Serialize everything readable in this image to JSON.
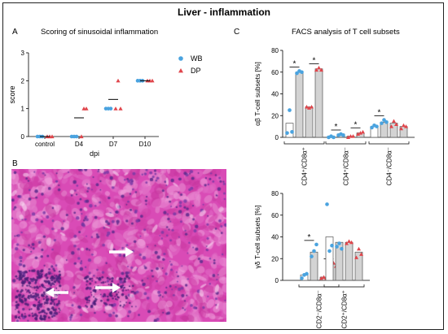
{
  "figure": {
    "title": "Liver - inflammation",
    "panels": {
      "a": "A",
      "b": "B",
      "c": "C"
    },
    "panel_a_title": "Scoring of sinusoidal inflammation",
    "panel_c_title": "FACS analysis of T cell subsets"
  },
  "colors": {
    "wb": "#4aa3df",
    "dp": "#e0454b",
    "bar_fill": "#d3d3d3",
    "bar_edge": "#555555",
    "histo_bg": "#d94bb6"
  },
  "chart_data": [
    {
      "id": "scoring",
      "type": "scatter",
      "title": "",
      "xlabel": "dpi",
      "ylabel": "score",
      "categories": [
        "control",
        "D4",
        "D7",
        "D10"
      ],
      "ylim": [
        0,
        3
      ],
      "yticks": [
        "0",
        "1",
        "2",
        "3"
      ],
      "legend_position": "top-right",
      "series": [
        {
          "name": "WB",
          "marker": "circle",
          "points": [
            [
              0,
              0,
              0
            ],
            [
              0,
              0,
              0
            ],
            [
              1,
              1,
              1
            ],
            [
              2,
              2,
              2
            ]
          ]
        },
        {
          "name": "DP",
          "marker": "triangle",
          "points": [
            [
              0,
              0,
              0
            ],
            [
              0,
              1,
              1
            ],
            [
              1,
              2,
              1
            ],
            [
              2,
              2,
              2
            ]
          ]
        }
      ],
      "means": [
        0,
        0.67,
        1.33,
        2
      ]
    },
    {
      "id": "ab",
      "type": "bar",
      "ylabel": "αβ T-cell subsets [%]",
      "ylim": [
        0,
        80
      ],
      "yticks": [
        "0",
        "20",
        "40",
        "60",
        "80"
      ],
      "groups": [
        {
          "label": "CD4⁺/CD8α⁺",
          "bars": [
            {
              "series": "WB",
              "value": 13,
              "points": [
                4,
                25,
                5
              ]
            },
            {
              "series": "WB",
              "value": 60,
              "points": [
                59,
                61,
                60
              ]
            },
            {
              "series": "DP",
              "value": 28,
              "points": [
                28,
                27,
                28
              ]
            },
            {
              "series": "DP",
              "value": 63,
              "points": [
                62,
                64,
                62
              ]
            }
          ],
          "sig": [
            "*",
            "*"
          ]
        },
        {
          "label": "CD4⁺/CD8α⁻",
          "bars": [
            {
              "series": "WB",
              "value": 1,
              "points": [
                0,
                1,
                0
              ]
            },
            {
              "series": "WB",
              "value": 3,
              "points": [
                2,
                3,
                2
              ]
            },
            {
              "series": "DP",
              "value": 1,
              "points": [
                0,
                1,
                1
              ]
            },
            {
              "series": "DP",
              "value": 4,
              "points": [
                3,
                4,
                5
              ]
            }
          ],
          "sig": [
            "*",
            "*"
          ]
        },
        {
          "label": "CD4⁻/CD8α⁻",
          "bars": [
            {
              "series": "WB",
              "value": 10,
              "points": [
                9,
                11,
                10
              ]
            },
            {
              "series": "WB",
              "value": 14,
              "points": [
                13,
                16,
                14
              ]
            },
            {
              "series": "DP",
              "value": 13,
              "points": [
                10,
                15,
                12
              ]
            },
            {
              "series": "DP",
              "value": 10,
              "points": [
                8,
                11,
                10
              ]
            }
          ],
          "sig": [
            "*"
          ]
        }
      ]
    },
    {
      "id": "gd",
      "type": "bar",
      "ylabel": "γδ T-cell subsets [%]",
      "ylim": [
        0,
        80
      ],
      "yticks": [
        "0",
        "20",
        "40",
        "60",
        "80"
      ],
      "groups": [
        {
          "label": "CD2⁻/CD8α⁻",
          "bars": [
            {
              "series": "WB",
              "value": 5,
              "points": [
                2,
                5,
                6
              ]
            },
            {
              "series": "WB",
              "value": 26,
              "points": [
                22,
                27,
                33
              ]
            },
            {
              "series": "DP",
              "value": 3,
              "points": [
                2,
                3,
                2
              ]
            },
            {
              "series": "DP",
              "value": 15,
              "points": [
                14,
                16,
                13
              ]
            }
          ],
          "sig": [
            "*",
            "*"
          ]
        },
        {
          "label": "CD2⁺/CD8α⁺",
          "bars": [
            {
              "series": "WB",
              "value": 40,
              "points": [
                70,
                27,
                32
              ]
            },
            {
              "series": "WB",
              "value": 35,
              "points": [
                31,
                34,
                29
              ]
            },
            {
              "series": "DP",
              "value": 35,
              "points": [
                34,
                36,
                35
              ]
            },
            {
              "series": "DP",
              "value": 26,
              "points": [
                21,
                29,
                24
              ]
            }
          ],
          "sig": []
        }
      ]
    }
  ]
}
